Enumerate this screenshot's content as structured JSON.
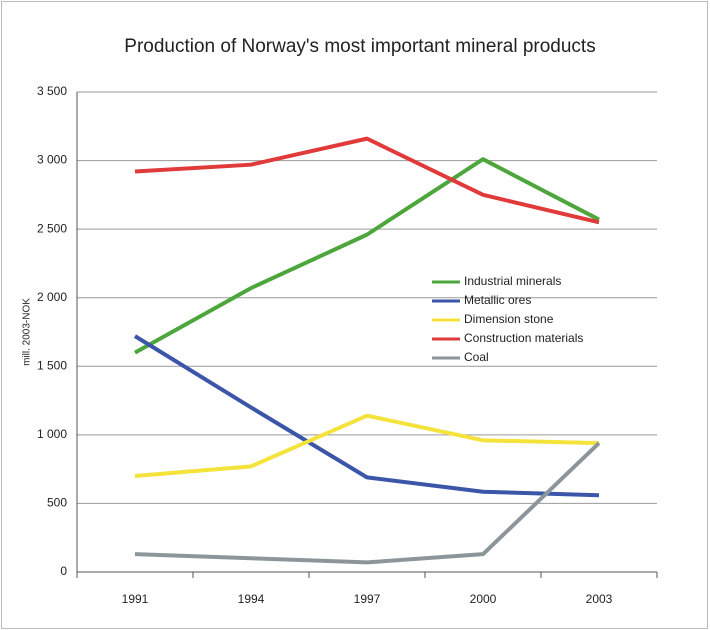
{
  "chart_data": {
    "type": "line",
    "title": "Production of Norway's most important mineral products",
    "y_label": "mill. 2003-NOK",
    "categories": [
      "1991",
      "1994",
      "1997",
      "2000",
      "2003"
    ],
    "series": [
      {
        "name": "Industrial minerals",
        "color": "#4ca63b",
        "values": [
          1600,
          2070,
          2460,
          3010,
          2570
        ]
      },
      {
        "name": "Metallic ores",
        "color": "#3b55a8",
        "values": [
          1720,
          1200,
          690,
          585,
          560
        ]
      },
      {
        "name": "Dimension stone",
        "color": "#f3e33b",
        "values": [
          700,
          770,
          1140,
          960,
          940
        ]
      },
      {
        "name": "Construction materials",
        "color": "#e03a3a",
        "values": [
          2920,
          2970,
          3160,
          2750,
          2550
        ]
      },
      {
        "name": "Coal",
        "color": "#8c969a",
        "values": [
          130,
          100,
          70,
          130,
          940
        ]
      }
    ],
    "ylim": [
      0,
      3500
    ],
    "yticks": [
      0,
      500,
      {
        "value": 1000,
        "label": "1 000"
      },
      {
        "value": 1500,
        "label": "1 500"
      },
      {
        "value": 2000,
        "label": "2 000"
      },
      {
        "value": 2500,
        "label": "2 500"
      },
      {
        "value": 3000,
        "label": "3 000"
      },
      {
        "value": 3500,
        "label": "3 500"
      }
    ],
    "grid": true,
    "legend": "right"
  }
}
